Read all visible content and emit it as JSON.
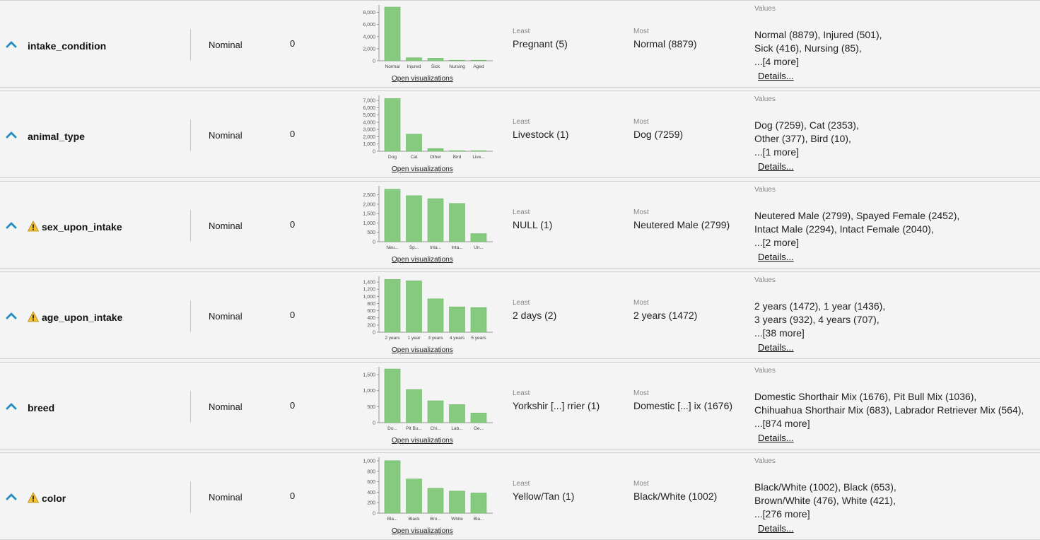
{
  "labels": {
    "least": "Least",
    "most": "Most",
    "values": "Values",
    "open_visualizations": "Open visualizations",
    "details": "Details..."
  },
  "colors": {
    "bar": "#85ca7e",
    "bar_stroke": "#6cb465",
    "warning": "#f2c12e",
    "chevron": "#2a8fc4"
  },
  "attributes": [
    {
      "name": "intake_condition",
      "warning": false,
      "type": "Nominal",
      "missing": "0",
      "least": "Pregnant (5)",
      "most": "Normal (8879)",
      "values_lines": [
        "Normal (8879), Injured (501),",
        "Sick (416), Nursing (85),",
        "...[4 more]"
      ],
      "chart_data": {
        "type": "bar",
        "categories": [
          "Normal",
          "Injured",
          "Sick",
          "Nursing",
          "Aged"
        ],
        "values": [
          8879,
          501,
          416,
          85,
          60
        ],
        "ylim": [
          0,
          9000
        ],
        "yticks": [
          0,
          2000,
          4000,
          6000,
          8000
        ],
        "ytick_labels": [
          "0",
          "2,000",
          "4,000",
          "6,000",
          "8,000"
        ]
      }
    },
    {
      "name": "animal_type",
      "warning": false,
      "type": "Nominal",
      "missing": "0",
      "least": "Livestock (1)",
      "most": "Dog (7259)",
      "values_lines": [
        "Dog (7259), Cat (2353),",
        "Other (377), Bird (10),",
        "...[1 more]"
      ],
      "chart_data": {
        "type": "bar",
        "categories": [
          "Dog",
          "Cat",
          "Other",
          "Bird",
          "Live..."
        ],
        "values": [
          7259,
          2353,
          377,
          10,
          1
        ],
        "ylim": [
          0,
          7500
        ],
        "yticks": [
          0,
          1000,
          2000,
          3000,
          4000,
          5000,
          6000,
          7000
        ],
        "ytick_labels": [
          "0",
          "1,000",
          "2,000",
          "3,000",
          "4,000",
          "5,000",
          "6,000",
          "7,000"
        ]
      }
    },
    {
      "name": "sex_upon_intake",
      "warning": true,
      "type": "Nominal",
      "missing": "0",
      "least": "NULL (1)",
      "most": "Neutered Male (2799)",
      "values_lines": [
        "Neutered Male (2799), Spayed Female (2452),",
        "Intact Male (2294), Intact Female (2040),",
        "...[2 more]"
      ],
      "chart_data": {
        "type": "bar",
        "categories": [
          "Neu...",
          "Sp...",
          "Inta...",
          "Inta...",
          "Un..."
        ],
        "values": [
          2799,
          2452,
          2294,
          2040,
          430
        ],
        "ylim": [
          0,
          2900
        ],
        "yticks": [
          0,
          500,
          1000,
          1500,
          2000,
          2500
        ],
        "ytick_labels": [
          "0",
          "500",
          "1,000",
          "1,500",
          "2,000",
          "2,500"
        ]
      }
    },
    {
      "name": "age_upon_intake",
      "warning": true,
      "type": "Nominal",
      "missing": "0",
      "least": "2 days (2)",
      "most": "2 years (1472)",
      "values_lines": [
        "2 years (1472), 1 year (1436),",
        "3 years (932), 4 years (707),",
        "...[38 more]"
      ],
      "chart_data": {
        "type": "bar",
        "categories": [
          "2 years",
          "1 year",
          "3 years",
          "4 years",
          "5 years"
        ],
        "values": [
          1472,
          1436,
          932,
          707,
          690
        ],
        "ylim": [
          0,
          1520
        ],
        "yticks": [
          0,
          200,
          400,
          600,
          800,
          1000,
          1200,
          1400
        ],
        "ytick_labels": [
          "0",
          "200",
          "400",
          "600",
          "800",
          "1,000",
          "1,200",
          "1,400"
        ]
      }
    },
    {
      "name": "breed",
      "warning": false,
      "type": "Nominal",
      "missing": "0",
      "least": "Yorkshir [...] rrier (1)",
      "most": "Domestic [...] ix (1676)",
      "values_lines": [
        "Domestic Shorthair Mix (1676), Pit Bull Mix (1036),",
        "Chihuahua Shorthair Mix (683), Labrador Retriever Mix (564),",
        "...[874 more]"
      ],
      "chart_data": {
        "type": "bar",
        "categories": [
          "Do...",
          "Pit Bu...",
          "Chi...",
          "Lab...",
          "Ge..."
        ],
        "values": [
          1676,
          1036,
          683,
          564,
          300
        ],
        "ylim": [
          0,
          1700
        ],
        "yticks": [
          0,
          500,
          1000,
          1500
        ],
        "ytick_labels": [
          "0",
          "500",
          "1,000",
          "1,500"
        ]
      }
    },
    {
      "name": "color",
      "warning": true,
      "type": "Nominal",
      "missing": "0",
      "least": "Yellow/Tan (1)",
      "most": "Black/White (1002)",
      "values_lines": [
        "Black/White (1002), Black (653),",
        "Brown/White (476), White (421),",
        "...[276 more]"
      ],
      "chart_data": {
        "type": "bar",
        "categories": [
          "Bla...",
          "Black",
          "Bro...",
          "White",
          "Bla..."
        ],
        "values": [
          1002,
          653,
          476,
          421,
          385
        ],
        "ylim": [
          0,
          1040
        ],
        "yticks": [
          0,
          200,
          400,
          600,
          800,
          1000
        ],
        "ytick_labels": [
          "0",
          "200",
          "400",
          "600",
          "800",
          "1,000"
        ]
      }
    }
  ]
}
